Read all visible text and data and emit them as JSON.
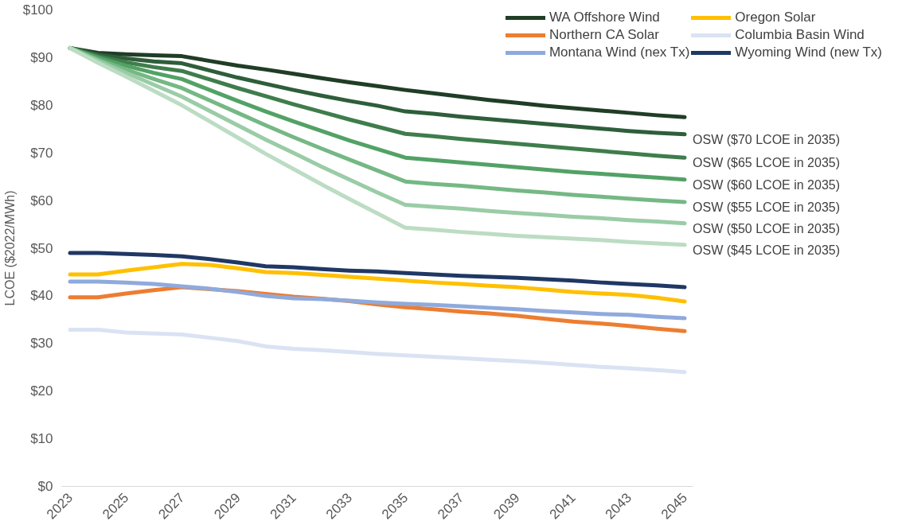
{
  "chart_data": {
    "type": "line",
    "ylabel": "LCOE ($2022/MWh)",
    "x": [
      2023,
      2024,
      2025,
      2026,
      2027,
      2028,
      2029,
      2030,
      2031,
      2032,
      2033,
      2034,
      2035,
      2036,
      2037,
      2038,
      2039,
      2040,
      2041,
      2042,
      2043,
      2044,
      2045
    ],
    "xlim": [
      2022.7,
      2045.3
    ],
    "xticks": [
      2023,
      2025,
      2027,
      2029,
      2031,
      2033,
      2035,
      2037,
      2039,
      2041,
      2043,
      2045
    ],
    "ylim": [
      0,
      100
    ],
    "yticks": [
      {
        "value": 0,
        "label": "$0"
      },
      {
        "value": 10,
        "label": "$10"
      },
      {
        "value": 20,
        "label": "$20"
      },
      {
        "value": 30,
        "label": "$30"
      },
      {
        "value": 40,
        "label": "$40"
      },
      {
        "value": 50,
        "label": "$50"
      },
      {
        "value": 60,
        "label": "$60"
      },
      {
        "value": 70,
        "label": "$70"
      },
      {
        "value": 80,
        "label": "$80"
      },
      {
        "value": 90,
        "label": "$90"
      },
      {
        "value": 100,
        "label": "$100"
      }
    ],
    "grid": false,
    "legend": "top right",
    "marker": "none",
    "line_style": "solid",
    "series": [
      {
        "name": "WA Offshore Wind",
        "color": "#203d26",
        "values": [
          92,
          91,
          90.7,
          90.5,
          90.3,
          89.3,
          88.3,
          87.5,
          86.6,
          85.7,
          84.8,
          84,
          83.2,
          82.5,
          81.8,
          81.1,
          80.5,
          79.9,
          79.4,
          78.9,
          78.4,
          77.9,
          77.5
        ]
      },
      {
        "name": "Oregon Solar",
        "color": "#ffc000",
        "values": [
          44.5,
          44.5,
          45.3,
          46,
          46.7,
          46.5,
          45.8,
          45,
          44.8,
          44.4,
          44,
          43.6,
          43.2,
          42.8,
          42.5,
          42.1,
          41.8,
          41.3,
          40.8,
          40.5,
          40.2,
          39.6,
          38.8
        ]
      },
      {
        "name": "Northern CA Solar",
        "color": "#ed7d31",
        "values": [
          39.7,
          39.7,
          40.5,
          41.2,
          41.8,
          41.4,
          41,
          40.4,
          39.8,
          39.4,
          38.9,
          38.2,
          37.6,
          37.2,
          36.7,
          36.3,
          35.8,
          35.2,
          34.6,
          34.2,
          33.7,
          33.1,
          32.6
        ]
      },
      {
        "name": "Columbia Basin Wind",
        "color": "#dae3f3",
        "values": [
          32.9,
          32.9,
          32.3,
          32.1,
          31.9,
          31.2,
          30.5,
          29.4,
          28.9,
          28.6,
          28.2,
          27.8,
          27.5,
          27.2,
          26.9,
          26.6,
          26.3,
          25.9,
          25.5,
          25.1,
          24.8,
          24.4,
          24
        ]
      },
      {
        "name": "Montana Wind (nex Tx)",
        "color": "#8faadc",
        "values": [
          43,
          43,
          42.8,
          42.5,
          42,
          41.5,
          40.8,
          40,
          39.5,
          39.3,
          39,
          38.6,
          38.3,
          38.1,
          37.8,
          37.5,
          37.2,
          36.8,
          36.5,
          36.2,
          36,
          35.6,
          35.3
        ]
      },
      {
        "name": "Wyoming Wind (new Tx)",
        "color": "#1f3864",
        "values": [
          49,
          49,
          48.8,
          48.6,
          48.3,
          47.7,
          47,
          46.2,
          46,
          45.6,
          45.3,
          45.1,
          44.8,
          44.5,
          44.2,
          44,
          43.8,
          43.5,
          43.2,
          42.8,
          42.5,
          42.2,
          41.8
        ]
      },
      {
        "color": "#2e5e3a",
        "values": [
          92,
          90.6,
          89.8,
          89.2,
          88.8,
          87.3,
          85.8,
          84.5,
          83.2,
          82,
          80.9,
          79.9,
          78.7,
          78.2,
          77.6,
          77.1,
          76.6,
          76.1,
          75.6,
          75.1,
          74.6,
          74.2,
          73.9
        ]
      },
      {
        "color": "#3f7d4c",
        "values": [
          92,
          90.3,
          89,
          88,
          87.2,
          85.4,
          83.6,
          81.9,
          80.2,
          78.6,
          77,
          75.5,
          74,
          73.5,
          72.9,
          72.4,
          71.9,
          71.4,
          70.9,
          70.4,
          69.9,
          69.4,
          69
        ]
      },
      {
        "color": "#52a265",
        "values": [
          92,
          90,
          88.3,
          86.8,
          85.5,
          83.2,
          80.9,
          78.7,
          76.6,
          74.6,
          72.6,
          70.8,
          69,
          68.5,
          68,
          67.5,
          67,
          66.5,
          66,
          65.6,
          65.2,
          64.8,
          64.4
        ]
      },
      {
        "color": "#75b884",
        "values": [
          92,
          89.6,
          87.5,
          85.5,
          83.6,
          81,
          78.4,
          75.8,
          73.3,
          70.9,
          68.6,
          66.3,
          64,
          63.5,
          63.1,
          62.6,
          62.1,
          61.7,
          61.2,
          60.8,
          60.4,
          60,
          59.7
        ]
      },
      {
        "color": "#9acca6",
        "values": [
          92,
          89.3,
          86.8,
          84.3,
          81.8,
          78.8,
          75.8,
          72.8,
          70,
          67.1,
          64.4,
          61.7,
          59.1,
          58.7,
          58.3,
          57.8,
          57.4,
          57,
          56.6,
          56.3,
          55.9,
          55.6,
          55.2
        ]
      },
      {
        "color": "#bcdcc3",
        "values": [
          92,
          88.9,
          86,
          83,
          80,
          76.6,
          73.2,
          69.8,
          66.6,
          63.4,
          60.3,
          57.3,
          54.3,
          53.9,
          53.4,
          53,
          52.6,
          52.3,
          52,
          51.7,
          51.3,
          51,
          50.7
        ]
      }
    ],
    "annotations": [
      "OSW ($70 LCOE in 2035)",
      "OSW ($65 LCOE in 2035)",
      "OSW ($60 LCOE in 2035)",
      "OSW ($55 LCOE in 2035)",
      "OSW ($50 LCOE in 2035)",
      "OSW ($45 LCOE in 2035)"
    ]
  }
}
